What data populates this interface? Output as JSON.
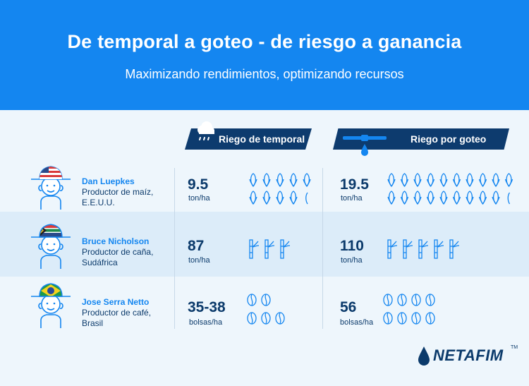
{
  "header": {
    "title": "De temporal a goteo - de riesgo a ganancia",
    "subtitle": "Maximizando rendimientos, optimizando recursos"
  },
  "columns": {
    "rainfed": "Riego de temporal",
    "drip": "Riego por goteo"
  },
  "rows": [
    {
      "name": "Dan Luepkes",
      "role": "Productor de maíz,",
      "country": "E.E.U.U.",
      "flag": "usa",
      "rainfed_value": "9.5",
      "rainfed_unit": "ton/ha",
      "drip_value": "19.5",
      "drip_unit": "ton/ha",
      "crop_icon": "corn-icon",
      "rainfed_icon_count": 9.5,
      "drip_icon_count": 19.5
    },
    {
      "name": "Bruce Nicholson",
      "role": "Productor de caña,",
      "country": "Sudáfrica",
      "flag": "south-africa",
      "rainfed_value": "87",
      "rainfed_unit": "ton/ha",
      "drip_value": "110",
      "drip_unit": "ton/ha",
      "crop_icon": "sugarcane-icon",
      "rainfed_icon_count": 3,
      "drip_icon_count": 5
    },
    {
      "name": "Jose Serra Netto",
      "role": "Productor de café,",
      "country": "Brasil",
      "flag": "brazil",
      "rainfed_value": "35-38",
      "rainfed_unit": "bolsas/ha",
      "drip_value": "56",
      "drip_unit": "bolsas/ha",
      "crop_icon": "coffee-bean-icon",
      "rainfed_icon_count": 5,
      "drip_icon_count": 8
    }
  ],
  "logo": {
    "wordmark": "NETAFIM",
    "tm": "TM"
  },
  "colors": {
    "header": "#1486f0",
    "navy": "#0b3a6b",
    "accent": "#1486f0",
    "row_highlight": "#dcecf9"
  }
}
